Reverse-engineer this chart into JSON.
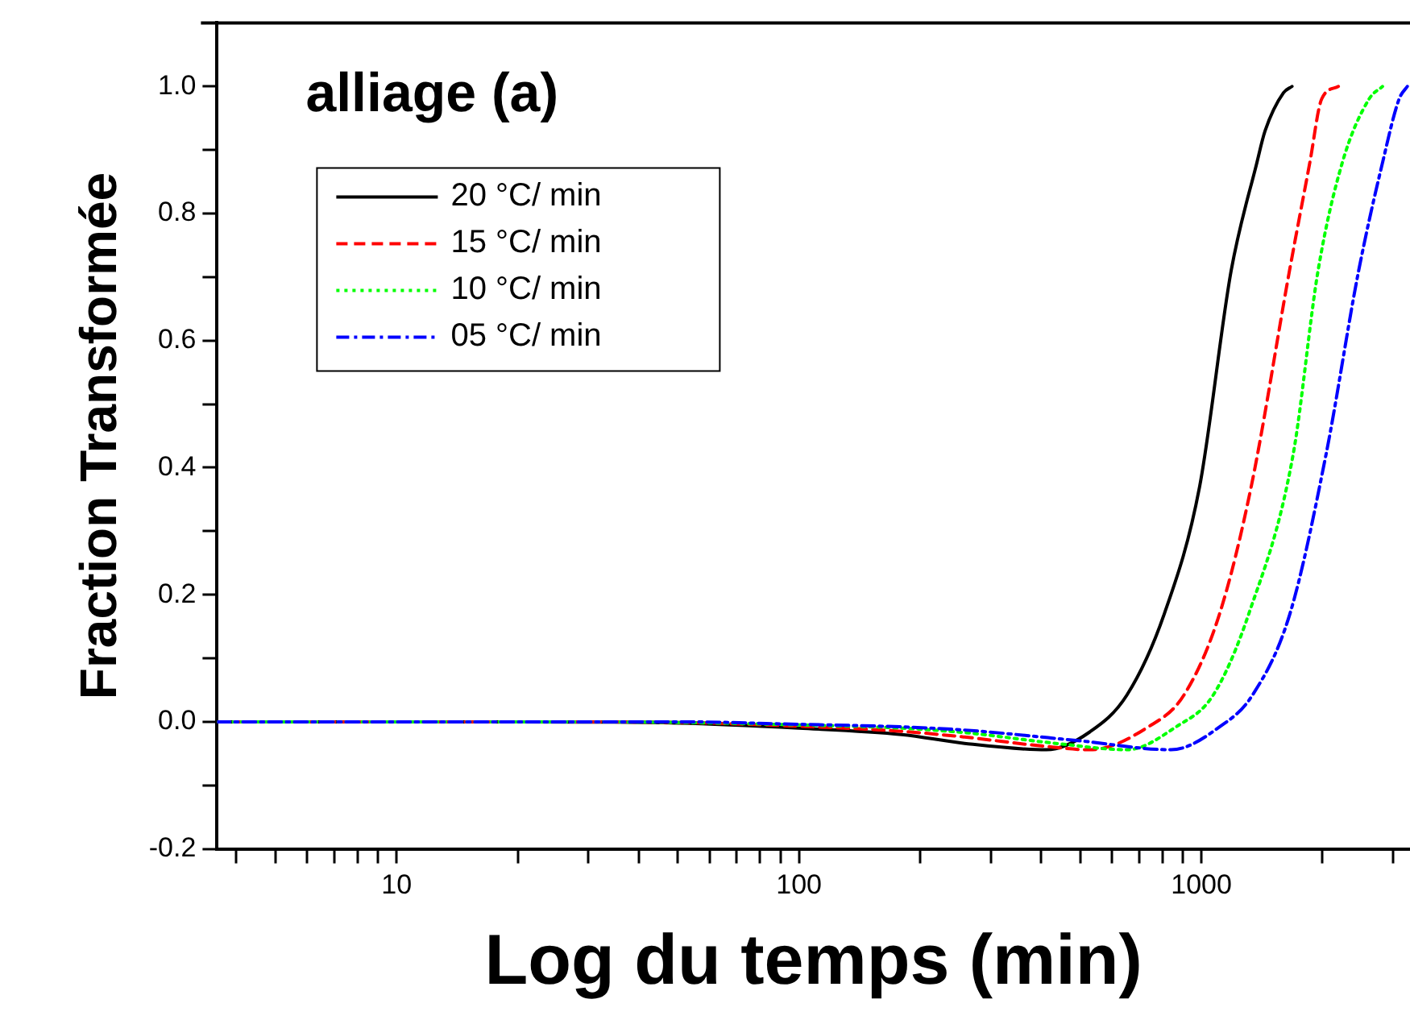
{
  "chart_data": {
    "type": "line",
    "title": "alliage (a)",
    "xlabel": "Log du temps (min)",
    "ylabel": "Fraction Transformée",
    "log": "x",
    "xlim": [
      3.58,
      3300
    ],
    "ylim": [
      -0.2,
      1.1
    ],
    "xticks": [
      {
        "value": 4,
        "label": null
      },
      {
        "value": 5,
        "label": null
      },
      {
        "value": 6,
        "label": null
      },
      {
        "value": 7,
        "label": null
      },
      {
        "value": 8,
        "label": null
      },
      {
        "value": 9,
        "label": null
      },
      10,
      {
        "value": 20,
        "label": null
      },
      {
        "value": 30,
        "label": null
      },
      {
        "value": 40,
        "label": null
      },
      {
        "value": 50,
        "label": null
      },
      {
        "value": 60,
        "label": null
      },
      {
        "value": 70,
        "label": null
      },
      {
        "value": 80,
        "label": null
      },
      {
        "value": 90,
        "label": null
      },
      100,
      {
        "value": 200,
        "label": null
      },
      {
        "value": 300,
        "label": null
      },
      {
        "value": 400,
        "label": null
      },
      {
        "value": 500,
        "label": null
      },
      {
        "value": 600,
        "label": null
      },
      {
        "value": 700,
        "label": null
      },
      {
        "value": 800,
        "label": null
      },
      {
        "value": 900,
        "label": null
      },
      1000,
      {
        "value": 2000,
        "label": null
      },
      {
        "value": 3000,
        "label": null
      }
    ],
    "yticks": [
      {
        "value": -0.2,
        "label": "-0.2"
      },
      {
        "value": -0.1,
        "label": null
      },
      {
        "value": 0,
        "label": "0.0"
      },
      {
        "value": 0.1,
        "label": null
      },
      0.2,
      {
        "value": 0.3,
        "label": null
      },
      0.4,
      {
        "value": 0.5,
        "label": null
      },
      0.6,
      {
        "value": 0.7,
        "label": null
      },
      0.8,
      {
        "value": 0.9,
        "label": null
      },
      {
        "value": 1,
        "label": "1.0"
      }
    ],
    "grid": false,
    "legend": "top left",
    "marker": "none",
    "series": [
      {
        "name": "20 °C/ min",
        "color": "#000000",
        "line_style": "solid",
        "x": [
          3.58,
          10,
          20,
          50,
          100,
          180,
          258,
          412,
          528,
          653,
          809,
          990,
          1186,
          1374,
          1440,
          1600,
          1680
        ],
        "values": [
          0,
          0,
          0,
          -0.002,
          -0.01,
          -0.02,
          -0.034,
          -0.044,
          -0.016,
          0.042,
          0.17,
          0.37,
          0.71,
          0.88,
          0.93,
          0.99,
          1.0
        ]
      },
      {
        "name": "15 °C/ min",
        "color": "#ff0000",
        "line_style": "dashed",
        "x": [
          3.58,
          10,
          20,
          50,
          100,
          180,
          258,
          400,
          528,
          738,
          905,
          1110,
          1330,
          1656,
          1860,
          1990,
          2190
        ],
        "values": [
          0,
          0,
          0,
          -0.001,
          -0.007,
          -0.015,
          -0.024,
          -0.038,
          -0.044,
          -0.008,
          0.042,
          0.17,
          0.37,
          0.71,
          0.88,
          0.98,
          1.0
        ]
      },
      {
        "name": "10 °C/ min",
        "color": "#00ff00",
        "line_style": "dotted",
        "x": [
          3.58,
          10,
          20,
          50,
          100,
          180,
          258,
          450,
          653,
          865,
          1070,
          1312,
          1690,
          1950,
          2240,
          2610,
          2820
        ],
        "values": [
          0,
          0,
          0,
          -0.001,
          -0.005,
          -0.01,
          -0.017,
          -0.035,
          -0.044,
          -0.008,
          0.042,
          0.17,
          0.42,
          0.71,
          0.88,
          0.98,
          1.0
        ]
      },
      {
        "name": "05 °C/ min",
        "color": "#0000ff",
        "line_style": "dashdot",
        "x": [
          3.58,
          10,
          20,
          50,
          100,
          180,
          258,
          500,
          841,
          1110,
          1340,
          1660,
          2040,
          2460,
          2820,
          3100,
          3250
        ],
        "values": [
          0,
          0,
          0,
          0,
          -0.004,
          -0.008,
          -0.013,
          -0.03,
          -0.044,
          -0.008,
          0.042,
          0.17,
          0.42,
          0.71,
          0.88,
          0.98,
          1.0
        ]
      }
    ]
  }
}
